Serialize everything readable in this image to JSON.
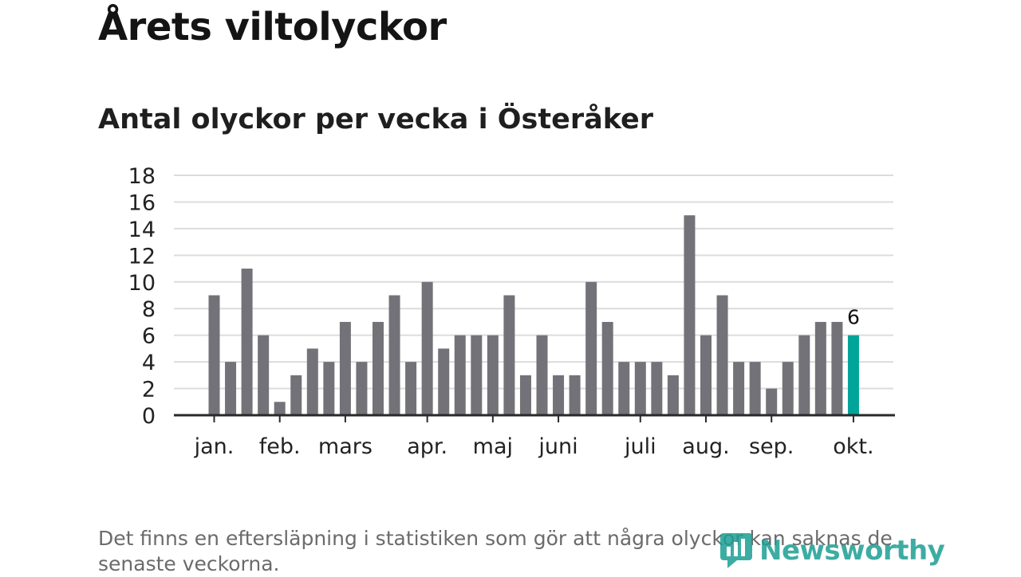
{
  "title": "Årets viltolyckor",
  "subtitle": "Antal olyckor per vecka i Österåker",
  "footnote": "Det finns en eftersläpning i statistiken som gör att några olyckor kan saknas de senaste veckorna.",
  "brand": "Newsworthy",
  "colors": {
    "bar": "#737278",
    "highlight": "#00a499",
    "grid": "#dcdcdc",
    "axis": "#2a2a2a",
    "brand": "#1c9e94"
  },
  "chart_data": {
    "type": "bar",
    "title": "Antal olyckor per vecka i Österåker",
    "xlabel": "",
    "ylabel": "",
    "ylim": [
      0,
      18
    ],
    "yticks": [
      0,
      2,
      4,
      6,
      8,
      10,
      12,
      14,
      16,
      18
    ],
    "grid": true,
    "values": [
      9,
      4,
      11,
      6,
      1,
      3,
      5,
      4,
      7,
      4,
      7,
      9,
      4,
      10,
      5,
      6,
      6,
      6,
      9,
      3,
      6,
      3,
      3,
      10,
      7,
      4,
      4,
      4,
      3,
      15,
      6,
      9,
      4,
      4,
      2,
      4,
      6,
      7,
      7,
      6
    ],
    "highlight_index": 39,
    "highlight_label": "6",
    "month_ticks": [
      {
        "label": "jan.",
        "bar": 0
      },
      {
        "label": "feb.",
        "bar": 4
      },
      {
        "label": "mars",
        "bar": 8
      },
      {
        "label": "apr.",
        "bar": 13
      },
      {
        "label": "maj",
        "bar": 17
      },
      {
        "label": "juni",
        "bar": 21
      },
      {
        "label": "juli",
        "bar": 26
      },
      {
        "label": "aug.",
        "bar": 30
      },
      {
        "label": "sep.",
        "bar": 34
      },
      {
        "label": "okt.",
        "bar": 39
      }
    ]
  }
}
